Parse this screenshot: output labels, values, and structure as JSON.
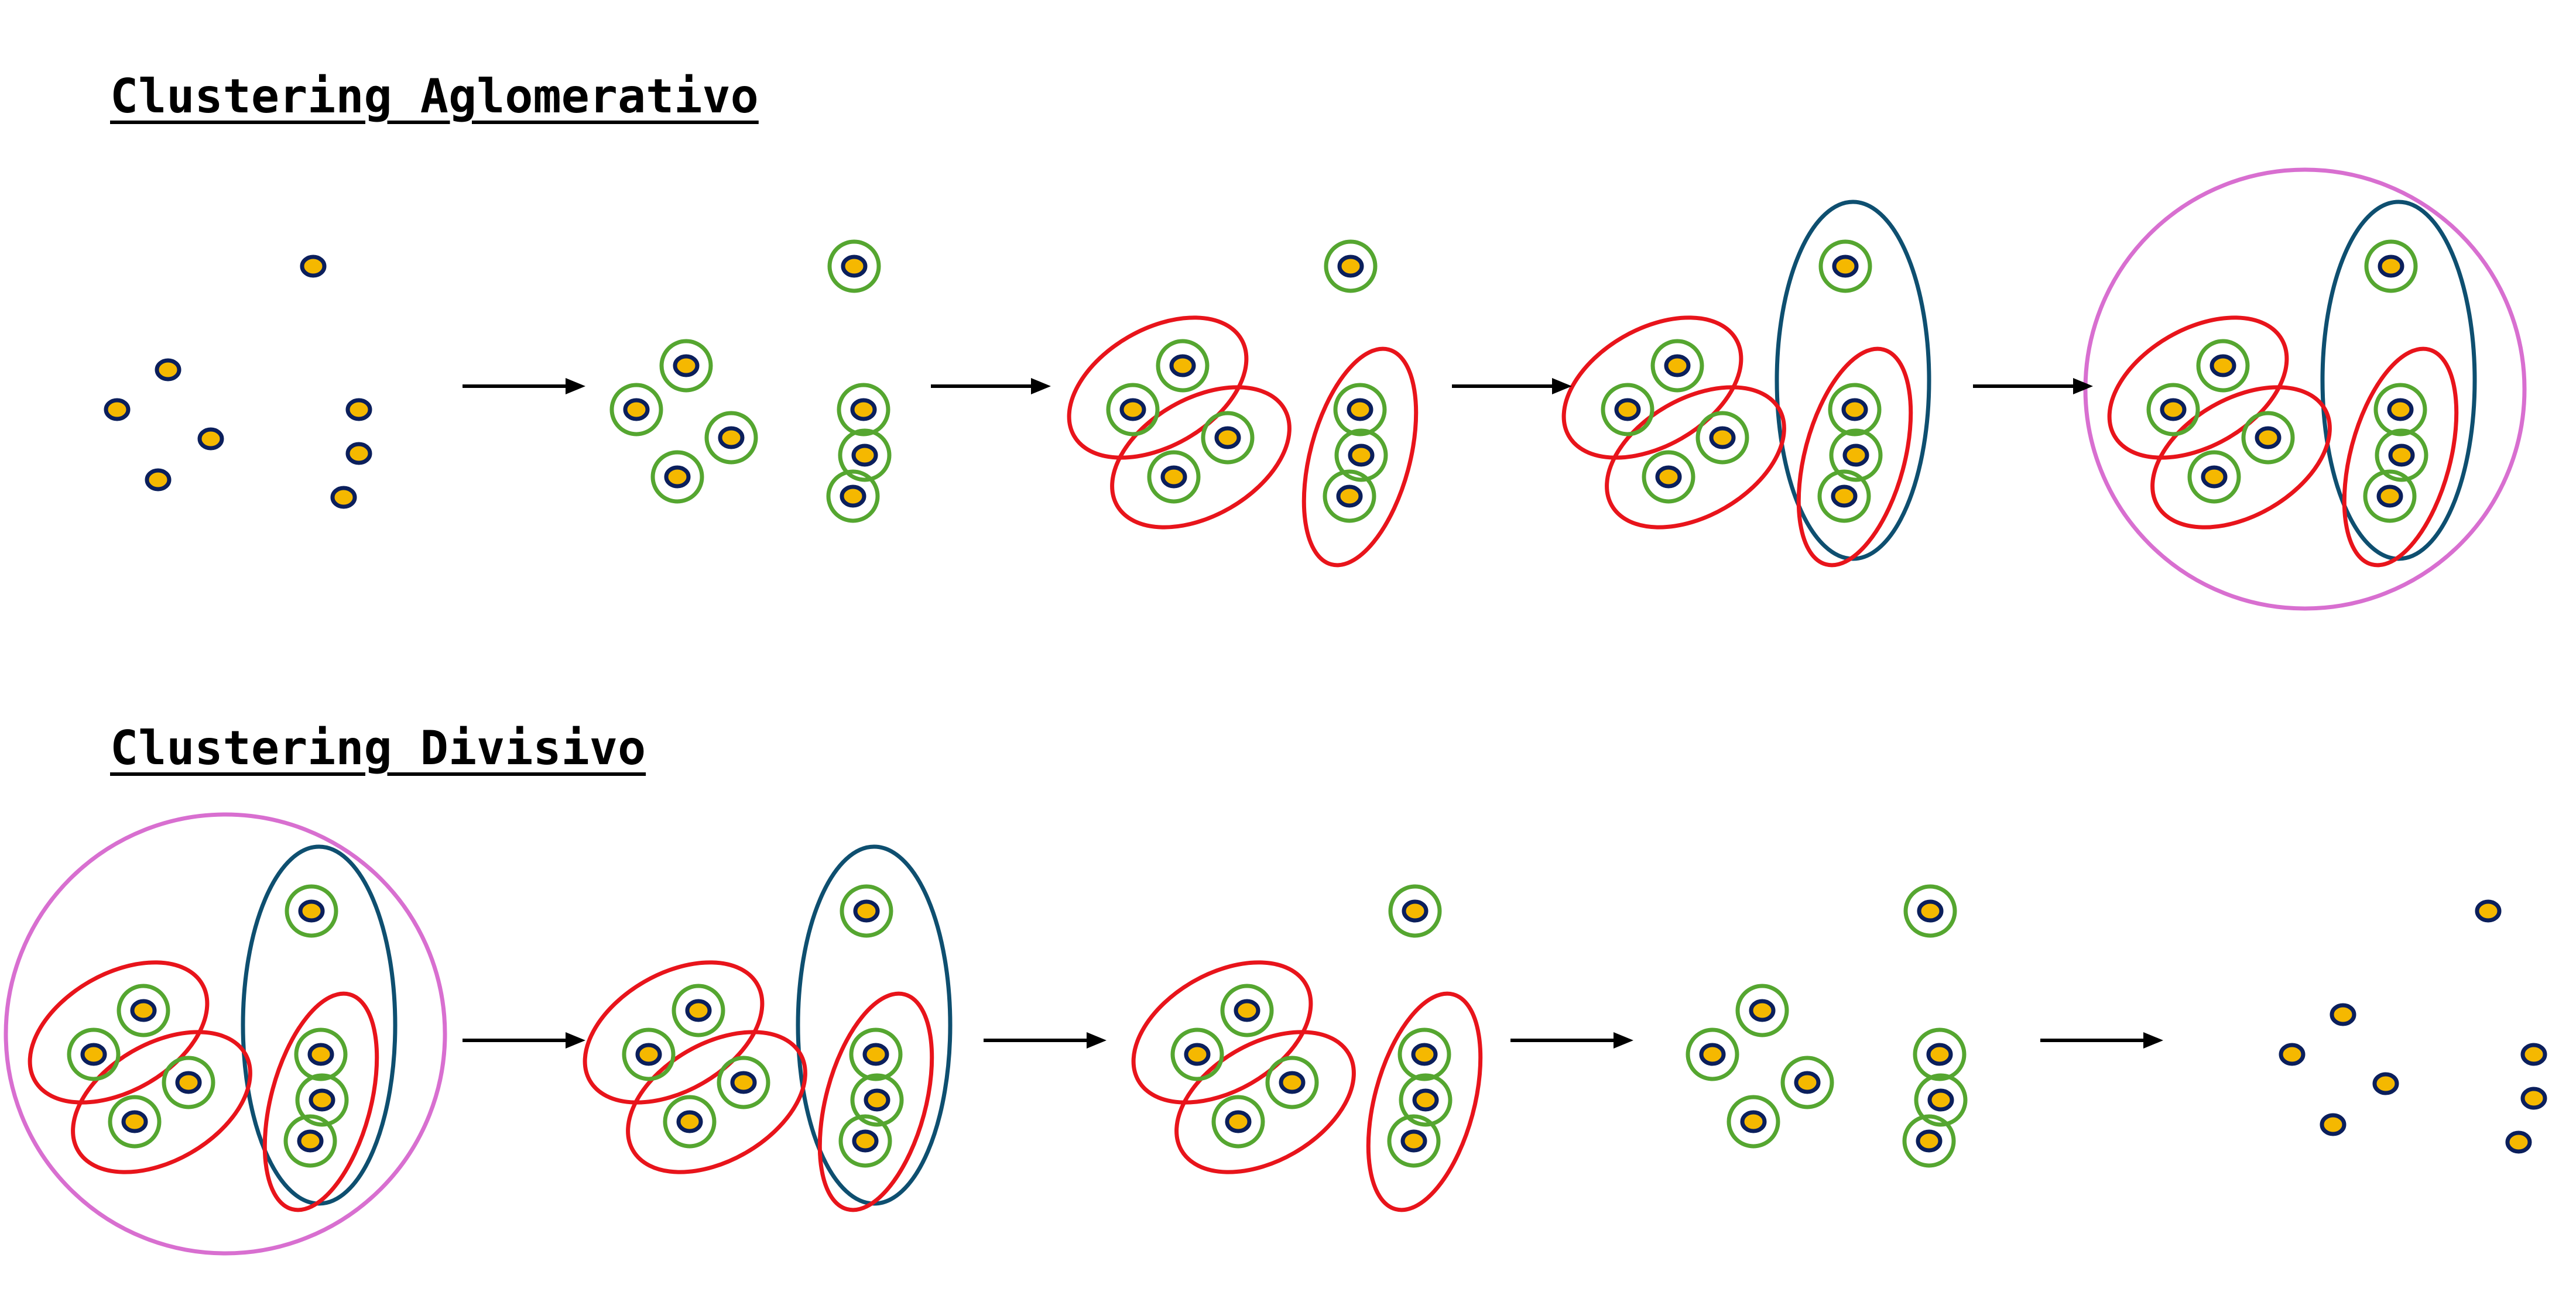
{
  "titles": {
    "agglomerative": "Clustering Aglomerativo",
    "divisive": "Clustering Divisivo"
  },
  "colors": {
    "point_fill": "#F5B800",
    "point_stroke": "#0B1F5C",
    "level1_cluster": "#55A630",
    "level2_cluster": "#E8141B",
    "level3_cluster": "#0E4F70",
    "level4_cluster": "#D86FD0",
    "arrow": "#000000"
  },
  "rows": [
    {
      "name": "agglomerative",
      "stages": [
        0,
        1,
        2,
        3,
        4
      ],
      "arrows": 4
    },
    {
      "name": "divisive",
      "stages": [
        4,
        3,
        2,
        1,
        0
      ],
      "arrows": 4
    }
  ]
}
